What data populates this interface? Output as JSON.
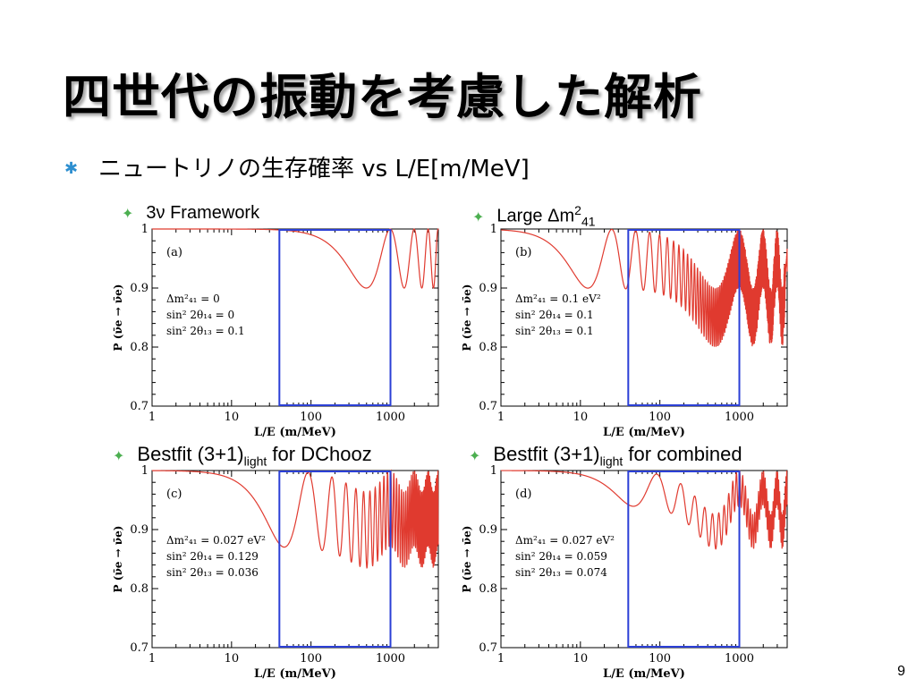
{
  "slide": {
    "title": "四世代の振動を考慮した解析",
    "bullet": "ニュートリノの生存確率 vs L/E[m/MeV]",
    "page_number": "9"
  },
  "panel_titles": [
    {
      "main": "3ν Framework"
    },
    {
      "main": "Large Δm",
      "sup": "2",
      "sub": "41"
    },
    {
      "main": "Bestfit (3+1)",
      "sub": "light",
      "tail": " for DChooz"
    },
    {
      "main": "Bestfit (3+1)",
      "sub": "light",
      "tail": " for combined"
    }
  ],
  "colors": {
    "curve": "#e03a2f",
    "window": "#2b3fd6",
    "axis": "#000000",
    "bullet_main": "#2e8fd0",
    "bullet_sub": "#4caf50"
  },
  "chart_data": [
    {
      "type": "line",
      "panel_label": "(a)",
      "xlabel": "L/E (m/MeV)",
      "ylabel": "P (ν̄e → ν̄e)",
      "xscale": "log",
      "xlim": [
        1,
        4000
      ],
      "ylim": [
        0.7,
        1.0
      ],
      "xticks": [
        "1",
        "10",
        "100",
        "1000"
      ],
      "yticks": [
        "0.7",
        "0.8",
        "0.9",
        "1"
      ],
      "params": [
        "Δm²₄₁ = 0",
        "sin² 2θ₁₄ = 0",
        "sin² 2θ₁₃ = 0.1"
      ],
      "dm2_41": 0,
      "sin2_2theta14": 0,
      "sin2_2theta13": 0.1,
      "window": [
        40,
        1000
      ]
    },
    {
      "type": "line",
      "panel_label": "(b)",
      "xlabel": "L/E (m/MeV)",
      "ylabel": "P (ν̄e → ν̄e)",
      "xscale": "log",
      "xlim": [
        1,
        4000
      ],
      "ylim": [
        0.7,
        1.0
      ],
      "xticks": [
        "1",
        "10",
        "100",
        "1000"
      ],
      "yticks": [
        "0.7",
        "0.8",
        "0.9",
        "1"
      ],
      "params": [
        "Δm²₄₁ = 0.1 eV²",
        "sin² 2θ₁₄ = 0.1",
        "sin² 2θ₁₃ = 0.1"
      ],
      "dm2_41": 0.1,
      "sin2_2theta14": 0.1,
      "sin2_2theta13": 0.1,
      "window": [
        40,
        1000
      ]
    },
    {
      "type": "line",
      "panel_label": "(c)",
      "xlabel": "L/E (m/MeV)",
      "ylabel": "P (ν̄e → ν̄e)",
      "xscale": "log",
      "xlim": [
        1,
        4000
      ],
      "ylim": [
        0.7,
        1.0
      ],
      "xticks": [
        "1",
        "10",
        "100",
        "1000"
      ],
      "yticks": [
        "0.7",
        "0.8",
        "0.9",
        "1"
      ],
      "params": [
        "Δm²₄₁ = 0.027 eV²",
        "sin² 2θ₁₄ = 0.129",
        "sin² 2θ₁₃ = 0.036"
      ],
      "dm2_41": 0.027,
      "sin2_2theta14": 0.129,
      "sin2_2theta13": 0.036,
      "window": [
        40,
        1000
      ]
    },
    {
      "type": "line",
      "panel_label": "(d)",
      "xlabel": "L/E (m/MeV)",
      "ylabel": "P (ν̄e → ν̄e)",
      "xscale": "log",
      "xlim": [
        1,
        4000
      ],
      "ylim": [
        0.7,
        1.0
      ],
      "xticks": [
        "1",
        "10",
        "100",
        "1000"
      ],
      "yticks": [
        "0.7",
        "0.8",
        "0.9",
        "1"
      ],
      "params": [
        "Δm²₄₁ = 0.027 eV²",
        "sin² 2θ₁₄ = 0.059",
        "sin² 2θ₁₃ = 0.074"
      ],
      "dm2_41": 0.027,
      "sin2_2theta14": 0.059,
      "sin2_2theta13": 0.074,
      "window": [
        40,
        1000
      ]
    }
  ]
}
